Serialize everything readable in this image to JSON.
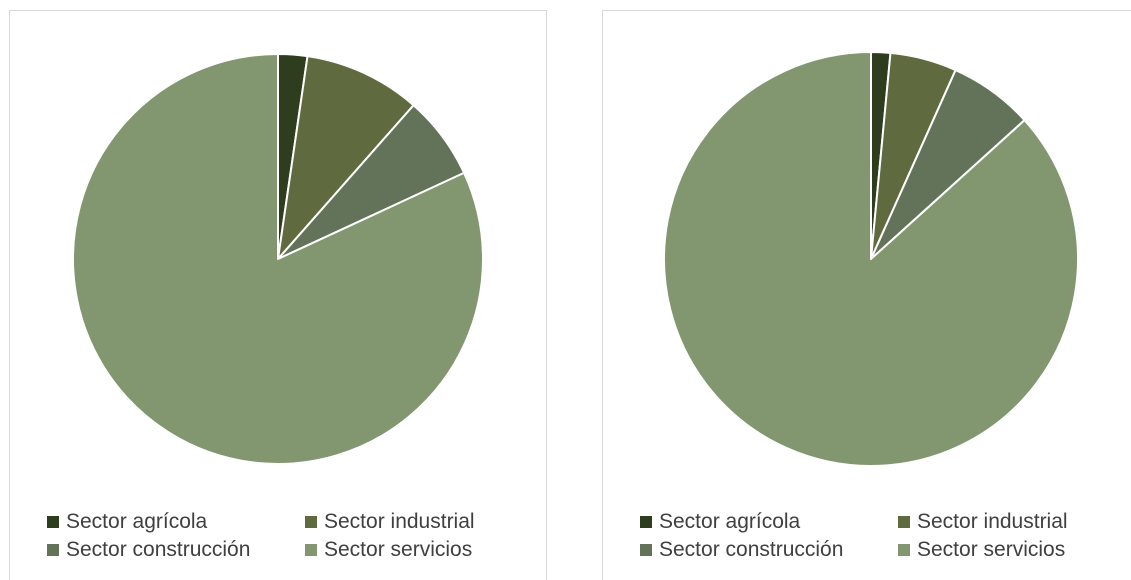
{
  "chart_data": [
    {
      "type": "pie",
      "title": "",
      "categories": [
        "Sector agrícola",
        "Sector industrial",
        "Sector construcción",
        "Sector servicios"
      ],
      "values": [
        2.3,
        9.2,
        6.6,
        81.9
      ],
      "colors": [
        "#2f3d1f",
        "#5f6b3f",
        "#63735a",
        "#829770"
      ],
      "legend_position": "bottom"
    },
    {
      "type": "pie",
      "title": "",
      "categories": [
        "Sector agrícola",
        "Sector industrial",
        "Sector construcción",
        "Sector servicios"
      ],
      "values": [
        1.5,
        5.2,
        6.6,
        86.7
      ],
      "colors": [
        "#2f3d1f",
        "#5f6b3f",
        "#63735a",
        "#829770"
      ],
      "legend_position": "bottom"
    }
  ]
}
